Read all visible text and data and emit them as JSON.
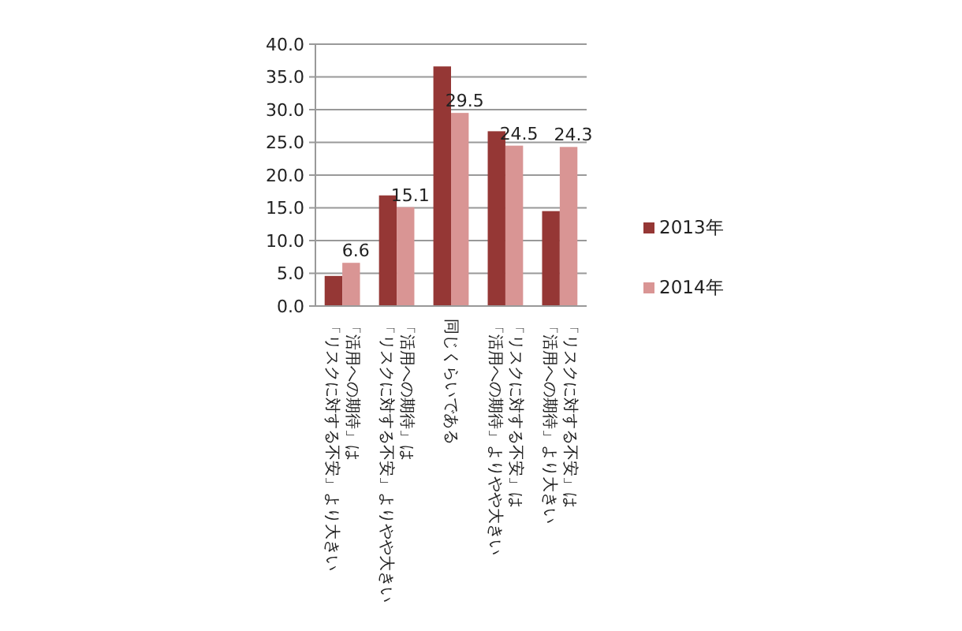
{
  "chart_data": {
    "type": "bar",
    "categories": [
      "「活用への期待」は「リスクに対する不安」より大きい",
      "「活用への期待」は「リスクに対する不安」よりやや大きい",
      "同じくらいである",
      "「リスクに対する不安」は「活用への期待」よりやや大きい",
      "「リスクに対する不安」は「活用への期待」より大きい"
    ],
    "series": [
      {
        "name": "2013年",
        "color": "#953735",
        "values": [
          4.6,
          16.9,
          36.6,
          26.7,
          14.5
        ]
      },
      {
        "name": "2014年",
        "color": "#d99594",
        "values": [
          6.6,
          15.1,
          29.5,
          24.5,
          24.3
        ],
        "value_labels": [
          "6.6",
          "15.1",
          "29.5",
          "24.5",
          "24.3"
        ]
      }
    ],
    "ylim": [
      0,
      40
    ],
    "yticks": [
      {
        "value": 0,
        "label": "0.0"
      },
      {
        "value": 5,
        "label": "5.0"
      },
      {
        "value": 10,
        "label": "10.0"
      },
      {
        "value": 15,
        "label": "15.0"
      },
      {
        "value": 20,
        "label": "20.0"
      },
      {
        "value": 25,
        "label": "25.0"
      },
      {
        "value": 30,
        "label": "30.0"
      },
      {
        "value": 35,
        "label": "35.0"
      },
      {
        "value": 40,
        "label": "40.0"
      }
    ],
    "grid": "y",
    "legend": "right"
  }
}
